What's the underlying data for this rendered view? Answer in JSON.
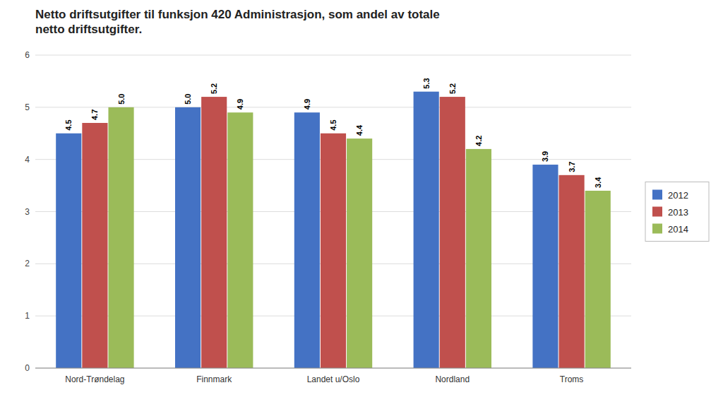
{
  "chart_data": {
    "type": "bar",
    "title": "Netto driftsutgifter til funksjon 420 Administrasjon, som andel av totale\nnetto driftsutgifter.",
    "categories": [
      "Nord-Trøndelag",
      "Finnmark",
      "Landet u/Oslo",
      "Nordland",
      "Troms"
    ],
    "series": [
      {
        "name": "2012",
        "color": "#4472C4",
        "values": [
          4.5,
          5.0,
          4.9,
          5.3,
          3.9
        ],
        "value_labels": [
          "4.5",
          "5.0",
          "4.9",
          "5.3",
          "3.9"
        ]
      },
      {
        "name": "2013",
        "color": "#C0504D",
        "values": [
          4.7,
          5.2,
          4.5,
          5.2,
          3.7
        ],
        "value_labels": [
          "4.7",
          "5.2",
          "4.5",
          "5.2",
          "3.7"
        ]
      },
      {
        "name": "2014",
        "color": "#9BBB59",
        "values": [
          5.0,
          4.9,
          4.4,
          4.2,
          3.4
        ],
        "value_labels": [
          "5.0",
          "4.9",
          "4.4",
          "4.2",
          "3.4"
        ]
      }
    ],
    "ylim": [
      0,
      6
    ],
    "yticks": [
      0,
      1,
      2,
      3,
      4,
      5,
      6
    ],
    "grid": true,
    "legend": "right",
    "data_labels": true
  }
}
